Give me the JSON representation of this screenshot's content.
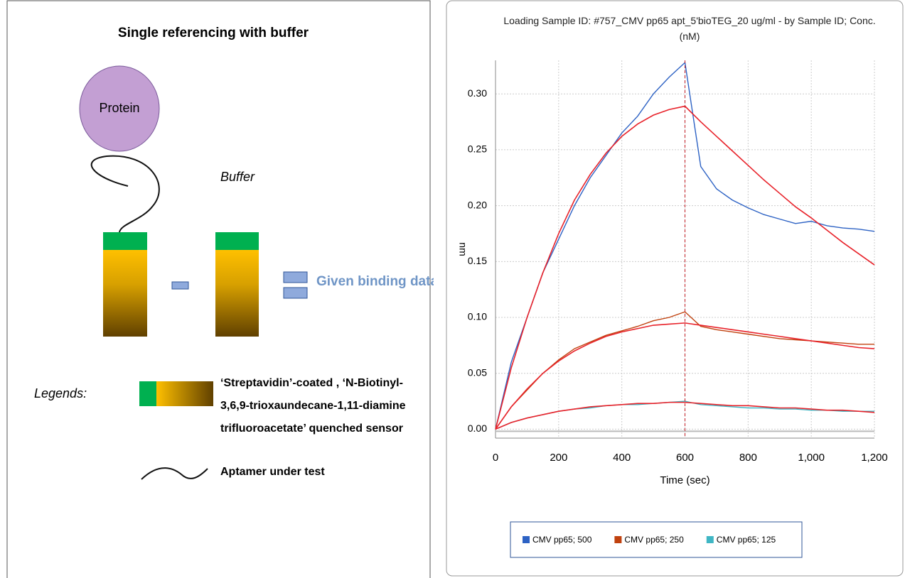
{
  "diagram": {
    "title": "Single  referencing with buffer",
    "nodes": [
      {
        "label": "Protein"
      }
    ],
    "buffer_label": "Buffer",
    "result_label": "Given binding data",
    "legend_title": "Legends:",
    "legend_items": [
      {
        "lines": [
          "‘Streptavidin’-coated , ‘N-Biotinyl-",
          "3,6,9-trioxaundecane-1,11-diamine",
          "trifluoroacetate’ quenched sensor"
        ]
      },
      {
        "lines": [
          "Aptamer under test"
        ]
      }
    ]
  },
  "chart_data": {
    "type": "line",
    "title": "Loading Sample ID: #757_CMV pp65 apt_5'bioTEG_20 ug/ml - by Sample ID; Conc. (nM)",
    "x_label": "Time (sec)",
    "y_label": "nm",
    "x": [
      0,
      50,
      100,
      150,
      200,
      250,
      300,
      350,
      400,
      450,
      500,
      550,
      600,
      650,
      700,
      750,
      800,
      850,
      900,
      950,
      1000,
      1050,
      1100,
      1150,
      1200
    ],
    "series": [
      {
        "name": "CMV pp65; 500",
        "color": "#2d62c4",
        "values": [
          0,
          0.06,
          0.1,
          0.14,
          0.17,
          0.2,
          0.225,
          0.245,
          0.265,
          0.28,
          0.3,
          0.315,
          0.328,
          0.235,
          0.215,
          0.205,
          0.198,
          0.192,
          0.188,
          0.184,
          0.186,
          0.182,
          0.18,
          0.179,
          0.177
        ]
      },
      {
        "name": "CMV pp65; 250",
        "color": "#c0410e",
        "values": [
          0,
          0.02,
          0.035,
          0.05,
          0.062,
          0.072,
          0.078,
          0.084,
          0.088,
          0.092,
          0.097,
          0.1,
          0.105,
          0.092,
          0.089,
          0.087,
          0.085,
          0.083,
          0.081,
          0.08,
          0.079,
          0.078,
          0.077,
          0.076,
          0.076
        ]
      },
      {
        "name": "CMV pp65; 125",
        "color": "#3fb6c4",
        "values": [
          0,
          0.006,
          0.01,
          0.013,
          0.016,
          0.018,
          0.019,
          0.021,
          0.022,
          0.022,
          0.023,
          0.024,
          0.025,
          0.022,
          0.021,
          0.02,
          0.019,
          0.019,
          0.018,
          0.018,
          0.017,
          0.017,
          0.016,
          0.016,
          0.016
        ]
      },
      {
        "color": "#e8222a",
        "values": [
          0,
          0.055,
          0.1,
          0.14,
          0.175,
          0.205,
          0.228,
          0.247,
          0.262,
          0.273,
          0.281,
          0.286,
          0.289,
          0.275,
          0.262,
          0.249,
          0.236,
          0.223,
          0.211,
          0.199,
          0.189,
          0.178,
          0.167,
          0.157,
          0.147
        ]
      },
      {
        "color": "#e8222a",
        "values": [
          0,
          0.02,
          0.036,
          0.05,
          0.061,
          0.07,
          0.077,
          0.083,
          0.087,
          0.09,
          0.093,
          0.094,
          0.095,
          0.093,
          0.091,
          0.089,
          0.087,
          0.085,
          0.083,
          0.081,
          0.079,
          0.077,
          0.075,
          0.073,
          0.072
        ]
      },
      {
        "color": "#e8222a",
        "values": [
          0,
          0.006,
          0.01,
          0.013,
          0.016,
          0.018,
          0.02,
          0.021,
          0.022,
          0.023,
          0.023,
          0.024,
          0.024,
          0.023,
          0.022,
          0.021,
          0.021,
          0.02,
          0.019,
          0.019,
          0.018,
          0.017,
          0.017,
          0.016,
          0.015
        ]
      }
    ],
    "vline": 600,
    "vline_color": "#c0161e",
    "xlim": [
      0,
      1200
    ],
    "ylim": [
      -0.008,
      0.33
    ],
    "xticks": [
      0,
      200,
      400,
      600,
      800,
      {
        "value": 1000,
        "label": "1,000"
      },
      {
        "value": 1200,
        "label": "1,200"
      }
    ],
    "yticks": [
      {
        "value": 0,
        "label": "0.00"
      },
      {
        "value": 0.05,
        "label": "0.05"
      },
      {
        "value": 0.1,
        "label": "0.10"
      },
      {
        "value": 0.15,
        "label": "0.15"
      },
      {
        "value": 0.2,
        "label": "0.20"
      },
      {
        "value": 0.25,
        "label": "0.25"
      },
      {
        "value": 0.3,
        "label": "0.30"
      }
    ],
    "grid": true
  }
}
